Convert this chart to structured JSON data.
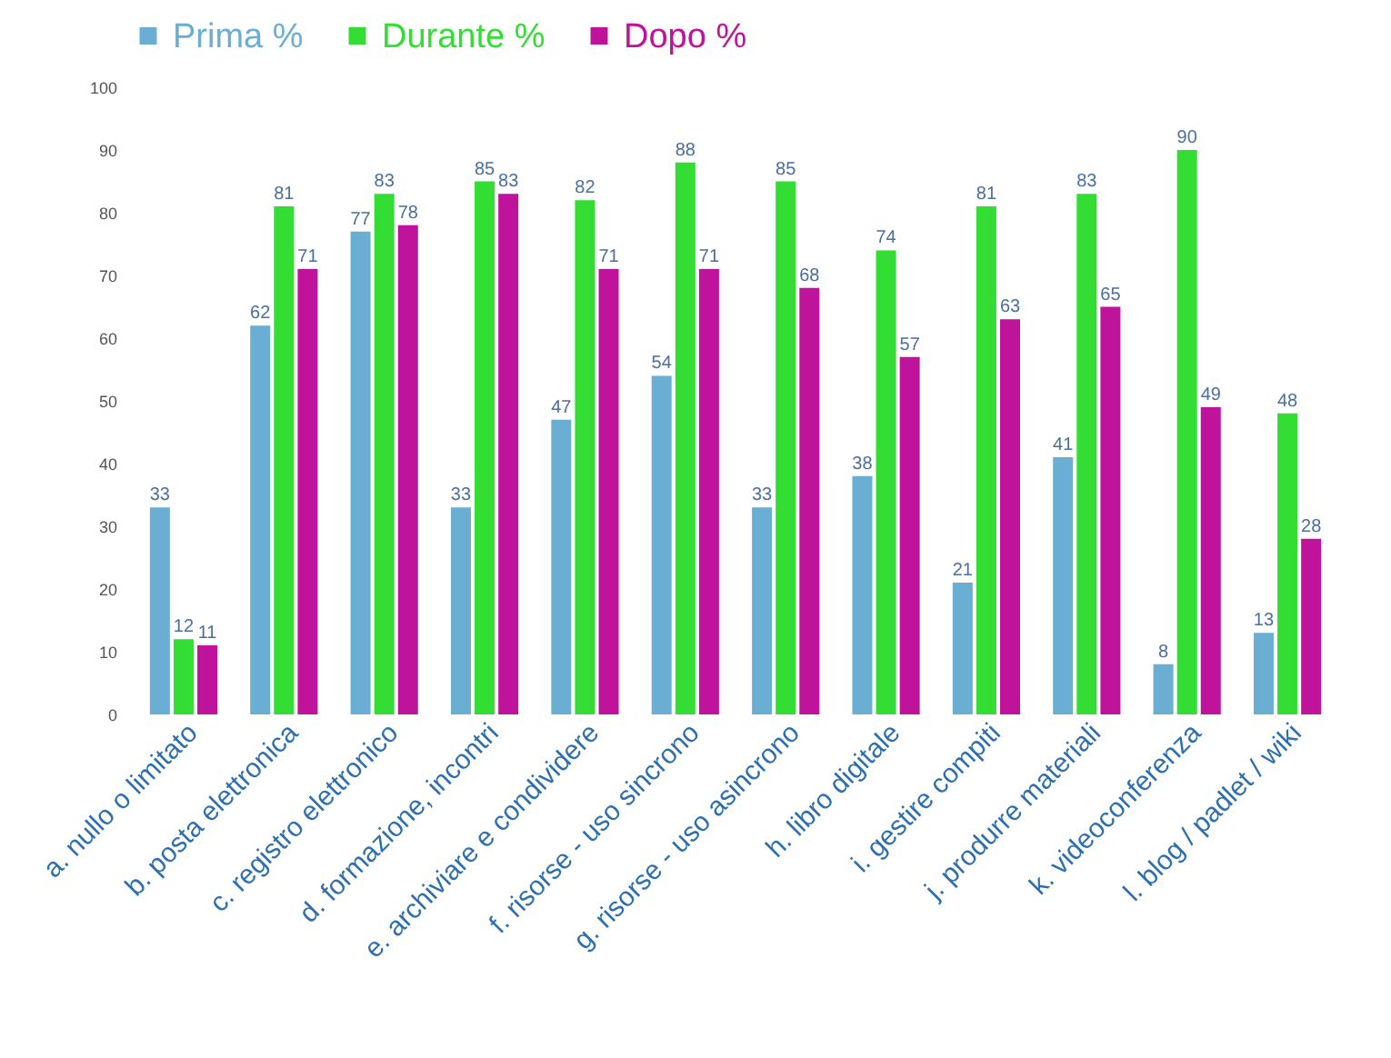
{
  "chart_data": {
    "type": "bar",
    "categories": [
      "a. nullo o limitato",
      "b. posta elettronica",
      "c. registro elettronico",
      "d. formazione, incontri",
      "e. archiviare e condividere",
      "f. risorse - uso sincrono",
      "g. risorse - uso asincrono",
      "h. libro digitale",
      "i. gestire compiti",
      "j. produrre materiali",
      "k. videoconferenza",
      "l. blog / padlet / wiki"
    ],
    "series": [
      {
        "name": "Prima %",
        "color": "#6aaed3",
        "values": [
          33,
          62,
          77,
          33,
          47,
          54,
          33,
          38,
          21,
          41,
          8,
          13
        ]
      },
      {
        "name": "Durante %",
        "color": "#33dd33",
        "values": [
          12,
          81,
          83,
          85,
          82,
          88,
          85,
          74,
          81,
          83,
          90,
          48
        ]
      },
      {
        "name": "Dopo %",
        "color": "#c0139c",
        "values": [
          11,
          71,
          78,
          83,
          71,
          71,
          68,
          57,
          63,
          65,
          49,
          28
        ]
      }
    ],
    "ylim": [
      0,
      100
    ],
    "yticks": [
      0,
      10,
      20,
      30,
      40,
      50,
      60,
      70,
      80,
      90,
      100
    ],
    "grid": false,
    "legend": "top",
    "data_labels": true
  }
}
